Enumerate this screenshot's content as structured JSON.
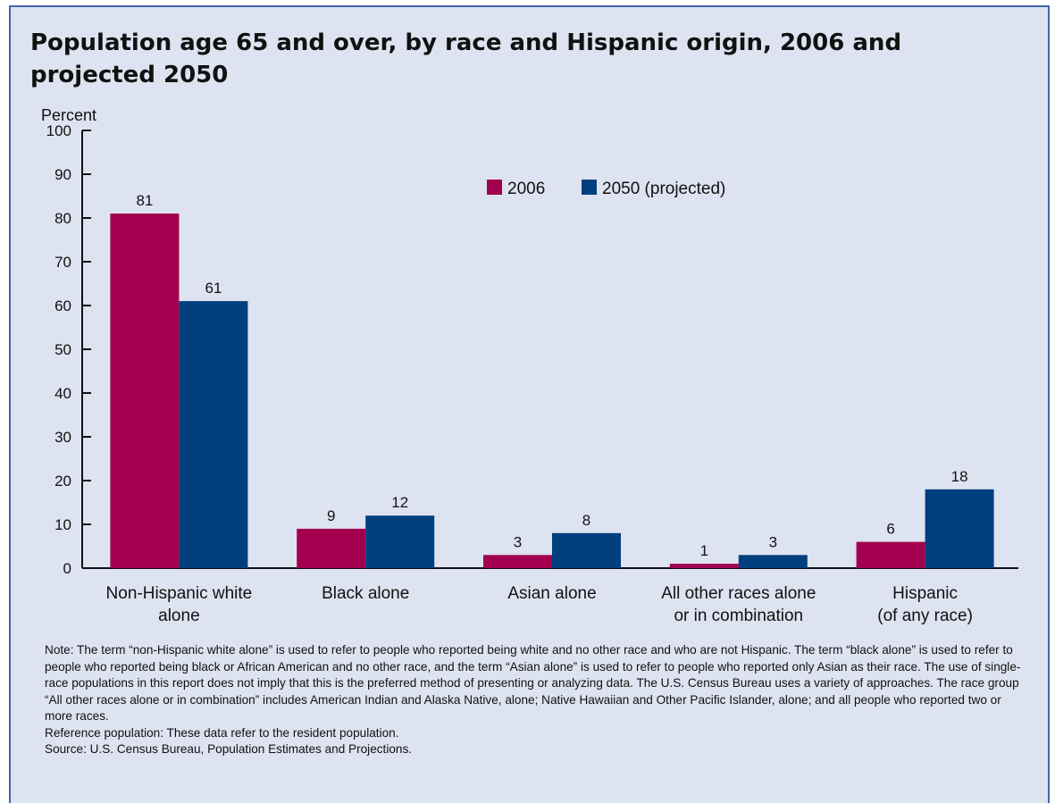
{
  "chart_data": {
    "type": "bar",
    "title": "Population age 65 and over, by race and Hispanic origin, 2006 and projected 2050",
    "ylabel": "Percent",
    "xlabel": "",
    "ylim": [
      0,
      100
    ],
    "yticks": [
      0,
      10,
      20,
      30,
      40,
      50,
      60,
      70,
      80,
      90,
      100
    ],
    "categories": [
      [
        "Non-Hispanic white",
        "alone"
      ],
      [
        "Black alone"
      ],
      [
        "Asian alone"
      ],
      [
        "All other races alone",
        "or in combination"
      ],
      [
        "Hispanic",
        "(of any race)"
      ]
    ],
    "series": [
      {
        "name": "2006",
        "color": "#a2004f",
        "values": [
          81,
          9,
          3,
          1,
          6
        ]
      },
      {
        "name": "2050 (projected)",
        "color": "#003f7d",
        "values": [
          61,
          12,
          8,
          3,
          18
        ]
      }
    ],
    "legend_position": "top-center",
    "grid": false
  },
  "notes": {
    "note": "Note: The term “non-Hispanic white alone” is used to refer to people who reported being white and no other race and who are not Hispanic. The term “black alone” is used to refer to people who reported being black or African American and no other race, and the term “Asian alone” is used to refer to people who reported only Asian as their race. The use of single-race populations in this report does not imply that this is the preferred method of presenting or analyzing data. The U.S. Census Bureau uses a variety of approaches. The race group “All other races alone or in combination” includes American Indian and Alaska Native, alone; Native Hawaiian and Other Pacific Islander, alone; and all people who reported two or more races.",
    "reference": "Reference population: These data refer to the resident population.",
    "source": "Source: U.S. Census Bureau, Population Estimates and Projections."
  }
}
